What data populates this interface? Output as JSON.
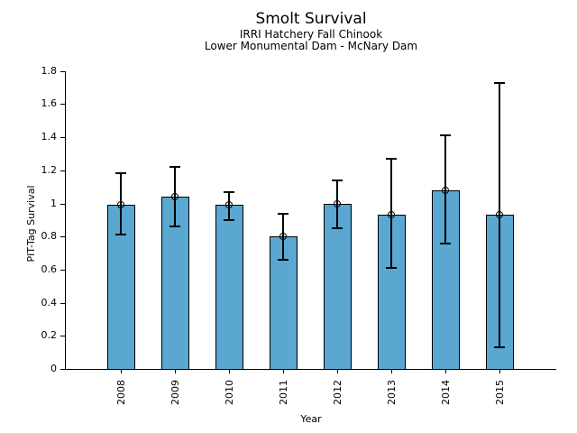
{
  "chart_data": {
    "type": "bar",
    "title": "Smolt Survival",
    "subtitle_lines": [
      "IRRI Hatchery Fall Chinook",
      "Lower Monumental Dam - McNary Dam"
    ],
    "xlabel": "Year",
    "ylabel": "PIT-Tag Survival",
    "categories": [
      "2008",
      "2009",
      "2010",
      "2011",
      "2012",
      "2013",
      "2014",
      "2015"
    ],
    "series": [
      {
        "name": "PIT-Tag Survival",
        "values": [
          0.99,
          1.04,
          0.99,
          0.8,
          1.0,
          0.93,
          1.08,
          0.93
        ],
        "error_low": [
          0.81,
          0.86,
          0.9,
          0.66,
          0.85,
          0.61,
          0.76,
          0.13
        ],
        "error_high": [
          1.18,
          1.22,
          1.07,
          0.94,
          1.14,
          1.27,
          1.41,
          1.73
        ]
      }
    ],
    "ylim": [
      0,
      1.8
    ],
    "yticks": [
      0,
      0.2,
      0.4,
      0.6,
      0.8,
      1,
      1.2,
      1.4,
      1.6,
      1.8
    ],
    "ytick_labels": [
      "0",
      "0.2",
      "0.4",
      "0.6",
      "0.8",
      "1",
      "1.2",
      "1.4",
      "1.6",
      "1.8"
    ],
    "grid": false,
    "legend": false,
    "marker": "open-circle",
    "colors": {
      "bar_fill": "#5AA7D2",
      "bar_edge": "#000000",
      "error_bar": "#000000",
      "text": "#000000"
    }
  }
}
